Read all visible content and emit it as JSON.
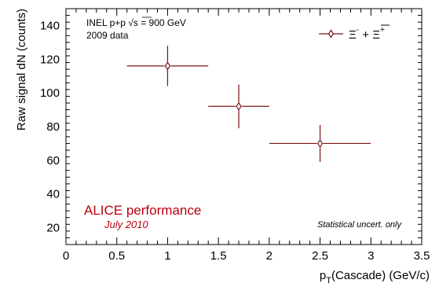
{
  "chart_data": {
    "type": "scatter",
    "title": "",
    "xlabel_main": "p",
    "xlabel_sub": "T",
    "xlabel_rest": "(Cascade) (GeV/c)",
    "ylabel": "Raw signal dN (counts)",
    "xlim": [
      0,
      3.5
    ],
    "ylim": [
      10,
      150
    ],
    "x_ticks": [
      0,
      0.5,
      1,
      1.5,
      2,
      2.5,
      3,
      3.5
    ],
    "x_tick_labels": [
      "0",
      "0.5",
      "1",
      "1.5",
      "2",
      "2.5",
      "3",
      "3.5"
    ],
    "y_ticks": [
      20,
      40,
      60,
      80,
      100,
      120,
      140
    ],
    "y_tick_labels": [
      "20",
      "40",
      "60",
      "80",
      "100",
      "120",
      "140"
    ],
    "grid": false,
    "legend_position": "top-right",
    "series": [
      {
        "name_parts": [
          "Ξ",
          "-",
          " + ",
          "Ξ",
          "+"
        ],
        "color": "#7b1616",
        "marker": "open-diamond",
        "points": [
          {
            "x": 1.0,
            "xerr_low": 0.4,
            "xerr_high": 0.4,
            "y": 116,
            "yerr": 12
          },
          {
            "x": 1.7,
            "xerr_low": 0.3,
            "xerr_high": 0.3,
            "y": 92,
            "yerr": 13
          },
          {
            "x": 2.5,
            "xerr_low": 0.5,
            "xerr_high": 0.5,
            "y": 70,
            "yerr": 11
          }
        ]
      }
    ],
    "annotations": {
      "info_line1_a": "INEL p+p  ",
      "info_line1_sqrt": "√s",
      "info_line1_b": " = 900 GeV",
      "info_line2": "2009 data",
      "alice_title": "ALICE performance",
      "alice_date": "July 2010",
      "stat_note": "Statistical uncert. only"
    }
  }
}
